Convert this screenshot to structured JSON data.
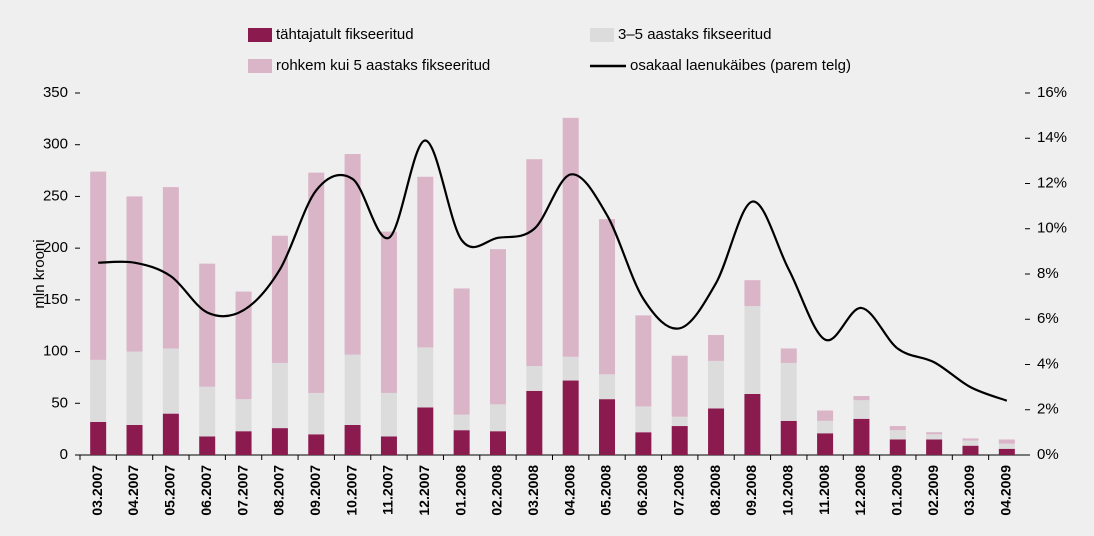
{
  "chart_data": {
    "type": "bar",
    "y_label": "mln krooni",
    "categories": [
      "03.2007",
      "04.2007",
      "05.2007",
      "06.2007",
      "07.2007",
      "08.2007",
      "09.2007",
      "10.2007",
      "11.2007",
      "12.2007",
      "01.2008",
      "02.2008",
      "03.2008",
      "04.2008",
      "05.2008",
      "06.2008",
      "07.2008",
      "08.2008",
      "09.2008",
      "10.2008",
      "11.2008",
      "12.2008",
      "01.2009",
      "02.2009",
      "03.2009",
      "04.2009"
    ],
    "series": [
      {
        "name": "tähtajatult fikseeritud",
        "color": "#8b1a4f",
        "values": [
          32,
          29,
          40,
          18,
          23,
          26,
          20,
          29,
          18,
          46,
          24,
          23,
          62,
          72,
          54,
          22,
          28,
          45,
          59,
          33,
          21,
          35,
          15,
          15,
          9,
          6
        ]
      },
      {
        "name": "3–5 aastaks fikseeritud",
        "color": "#dcdcdc",
        "values": [
          60,
          71,
          63,
          48,
          31,
          63,
          40,
          68,
          42,
          58,
          15,
          26,
          24,
          23,
          24,
          25,
          9,
          46,
          85,
          56,
          12,
          18,
          9,
          5,
          5,
          5
        ]
      },
      {
        "name": "rohkem kui 5 aastaks fikseeritud",
        "color": "#dab4c7",
        "values": [
          182,
          150,
          156,
          119,
          104,
          123,
          213,
          194,
          156,
          165,
          122,
          150,
          200,
          231,
          150,
          88,
          59,
          25,
          25,
          14,
          10,
          4,
          4,
          2,
          2,
          4
        ]
      },
      {
        "name": "osakaal laenukäibes (parem telg)",
        "color": "#000000",
        "type": "line",
        "axis": "y2",
        "values": [
          8.5,
          8.5,
          7.9,
          6.3,
          6.4,
          8.2,
          11.7,
          12.2,
          9.6,
          13.9,
          9.5,
          9.6,
          10.0,
          12.4,
          10.6,
          6.9,
          5.6,
          7.6,
          11.2,
          8.2,
          5.1,
          6.5,
          4.7,
          4.1,
          3.0,
          2.4
        ]
      }
    ],
    "ylim": [
      0,
      350
    ],
    "yticks": [
      0,
      50,
      100,
      150,
      200,
      250,
      300,
      350
    ],
    "y2lim": [
      0,
      16
    ],
    "y2ticks": [
      {
        "value": 0,
        "label": "0%"
      },
      {
        "value": 2,
        "label": "2%"
      },
      {
        "value": 4,
        "label": "4%"
      },
      {
        "value": 6,
        "label": "6%"
      },
      {
        "value": 8,
        "label": "8%"
      },
      {
        "value": 10,
        "label": "10%"
      },
      {
        "value": 12,
        "label": "12%"
      },
      {
        "value": 14,
        "label": "14%"
      },
      {
        "value": 16,
        "label": "16%"
      }
    ],
    "grid": false
  }
}
